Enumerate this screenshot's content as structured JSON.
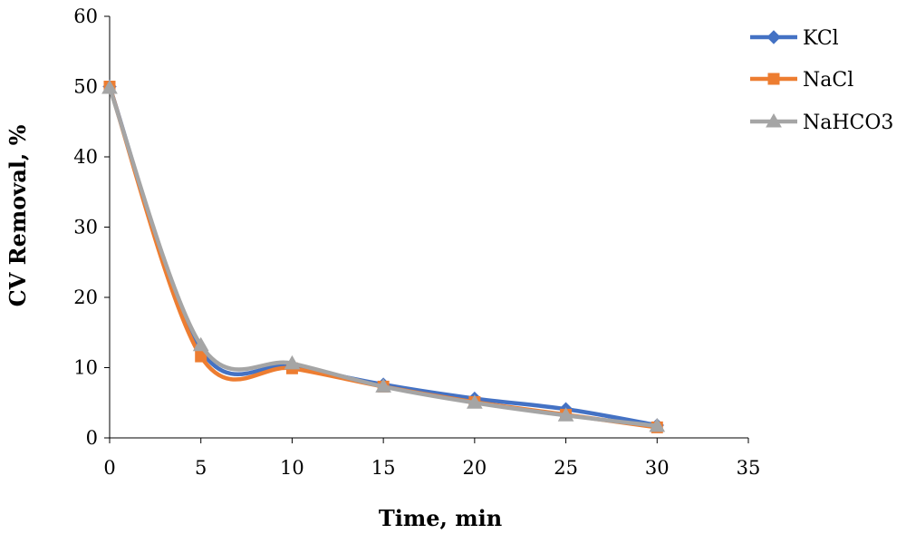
{
  "chart_data": {
    "type": "line",
    "title": "",
    "xlabel": "Time, min",
    "ylabel": "CV Removal, %",
    "xlim": [
      0,
      35
    ],
    "ylim": [
      0,
      60
    ],
    "xticks": [
      0,
      5,
      10,
      15,
      20,
      25,
      30,
      35
    ],
    "yticks": [
      0,
      10,
      20,
      30,
      40,
      50,
      60
    ],
    "grid": false,
    "legend_position": "top-right",
    "x": [
      0,
      5,
      10,
      15,
      20,
      25,
      30
    ],
    "series": [
      {
        "name": "KCl",
        "color": "#4472C4",
        "marker": "diamond",
        "values": [
          50,
          12.5,
          10.2,
          7.6,
          5.6,
          4.1,
          1.8
        ]
      },
      {
        "name": "NaCl",
        "color": "#ED7D31",
        "marker": "square",
        "values": [
          50,
          11.6,
          9.9,
          7.3,
          5.1,
          3.3,
          1.5
        ]
      },
      {
        "name": "NaHCO3",
        "color": "#A5A5A5",
        "marker": "triangle",
        "values": [
          49.8,
          13.2,
          10.6,
          7.3,
          5.0,
          3.2,
          1.7
        ]
      }
    ]
  }
}
